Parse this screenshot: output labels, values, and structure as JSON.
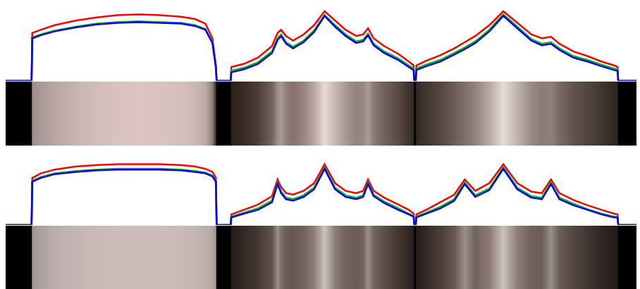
{
  "chart_data": [
    {
      "type": "line",
      "grid": false,
      "tick_labels": false,
      "xlim": [
        0,
        900
      ],
      "xticks": [
        115,
        180,
        245,
        310,
        375,
        440,
        505,
        570,
        635,
        700,
        765,
        830,
        895
      ],
      "ylim": [
        0,
        1
      ],
      "yticks": [
        0.4,
        0.8
      ],
      "x": [
        0,
        37,
        38,
        50,
        70,
        100,
        130,
        160,
        190,
        220,
        250,
        270,
        285,
        295,
        300,
        301,
        321,
        322,
        340,
        360,
        380,
        388,
        393,
        400,
        410,
        425,
        440,
        455,
        470,
        485,
        500,
        510,
        517,
        525,
        540,
        560,
        575,
        582,
        583,
        585,
        586,
        600,
        620,
        640,
        655,
        670,
        690,
        710,
        730,
        750,
        765,
        778,
        790,
        810,
        830,
        850,
        868,
        873,
        874,
        900
      ],
      "series": [
        {
          "color": "#ff0000",
          "values": [
            0,
            0,
            0.62,
            0.66,
            0.72,
            0.78,
            0.82,
            0.85,
            0.86,
            0.85,
            0.83,
            0.8,
            0.74,
            0.55,
            0.2,
            0,
            0,
            0.18,
            0.22,
            0.3,
            0.45,
            0.62,
            0.66,
            0.58,
            0.52,
            0.6,
            0.72,
            0.9,
            0.78,
            0.66,
            0.58,
            0.6,
            0.68,
            0.55,
            0.45,
            0.35,
            0.25,
            0.2,
            0,
            0,
            0.2,
            0.26,
            0.33,
            0.42,
            0.5,
            0.58,
            0.72,
            0.9,
            0.75,
            0.6,
            0.55,
            0.57,
            0.48,
            0.38,
            0.32,
            0.25,
            0.2,
            0.18,
            0,
            0
          ]
        },
        {
          "color": "#00c000",
          "values": [
            0,
            0,
            0.56,
            0.6,
            0.65,
            0.7,
            0.74,
            0.76,
            0.77,
            0.76,
            0.75,
            0.72,
            0.67,
            0.5,
            0.18,
            0,
            0,
            0.13,
            0.17,
            0.24,
            0.38,
            0.55,
            0.6,
            0.5,
            0.44,
            0.52,
            0.65,
            0.85,
            0.72,
            0.6,
            0.51,
            0.53,
            0.61,
            0.48,
            0.38,
            0.29,
            0.2,
            0.16,
            0,
            0,
            0.16,
            0.21,
            0.27,
            0.36,
            0.43,
            0.51,
            0.66,
            0.86,
            0.7,
            0.54,
            0.48,
            0.5,
            0.42,
            0.32,
            0.27,
            0.21,
            0.16,
            0.15,
            0,
            0
          ]
        },
        {
          "color": "#0000ff",
          "values": [
            0,
            0,
            0.55,
            0.59,
            0.64,
            0.69,
            0.73,
            0.75,
            0.76,
            0.75,
            0.74,
            0.71,
            0.66,
            0.49,
            0.17,
            0,
            0,
            0.11,
            0.15,
            0.22,
            0.36,
            0.53,
            0.58,
            0.48,
            0.42,
            0.5,
            0.63,
            0.84,
            0.7,
            0.58,
            0.49,
            0.51,
            0.59,
            0.46,
            0.36,
            0.27,
            0.18,
            0.14,
            0,
            0,
            0.14,
            0.19,
            0.25,
            0.34,
            0.41,
            0.49,
            0.64,
            0.84,
            0.68,
            0.52,
            0.46,
            0.48,
            0.4,
            0.3,
            0.25,
            0.19,
            0.14,
            0.13,
            0,
            0
          ]
        }
      ]
    },
    {
      "type": "line",
      "grid": false,
      "tick_labels": false,
      "xlim": [
        0,
        900
      ],
      "xticks": [
        115,
        180,
        245,
        310,
        375,
        440,
        505,
        570,
        635,
        700,
        765,
        830,
        895
      ],
      "ylim": [
        0,
        1
      ],
      "yticks": [
        0.4,
        0.8
      ],
      "x": [
        0,
        37,
        38,
        50,
        70,
        100,
        130,
        160,
        190,
        220,
        250,
        270,
        285,
        295,
        300,
        301,
        321,
        322,
        340,
        360,
        380,
        388,
        393,
        400,
        410,
        425,
        440,
        455,
        470,
        485,
        500,
        510,
        517,
        525,
        540,
        560,
        575,
        582,
        583,
        585,
        586,
        600,
        620,
        640,
        655,
        670,
        690,
        710,
        730,
        750,
        765,
        778,
        790,
        810,
        830,
        850,
        868,
        873,
        874,
        900
      ],
      "series": [
        {
          "color": "#ff0000",
          "values": [
            0,
            0,
            0.62,
            0.68,
            0.73,
            0.77,
            0.79,
            0.8,
            0.8,
            0.8,
            0.79,
            0.77,
            0.74,
            0.7,
            0.62,
            0,
            0,
            0.14,
            0.2,
            0.27,
            0.38,
            0.6,
            0.5,
            0.42,
            0.4,
            0.45,
            0.55,
            0.8,
            0.55,
            0.45,
            0.42,
            0.45,
            0.6,
            0.45,
            0.36,
            0.27,
            0.2,
            0.15,
            0,
            0,
            0.14,
            0.2,
            0.3,
            0.4,
            0.6,
            0.45,
            0.55,
            0.8,
            0.55,
            0.44,
            0.42,
            0.6,
            0.42,
            0.33,
            0.26,
            0.2,
            0.15,
            0.14,
            0,
            0
          ]
        },
        {
          "color": "#00c000",
          "values": [
            0,
            0,
            0.58,
            0.63,
            0.68,
            0.71,
            0.73,
            0.74,
            0.74,
            0.74,
            0.73,
            0.71,
            0.69,
            0.65,
            0.58,
            0,
            0,
            0.11,
            0.16,
            0.22,
            0.32,
            0.56,
            0.44,
            0.36,
            0.34,
            0.39,
            0.49,
            0.76,
            0.49,
            0.39,
            0.36,
            0.39,
            0.56,
            0.4,
            0.31,
            0.22,
            0.15,
            0.12,
            0,
            0,
            0.11,
            0.16,
            0.24,
            0.34,
            0.56,
            0.39,
            0.48,
            0.76,
            0.49,
            0.38,
            0.36,
            0.56,
            0.36,
            0.28,
            0.21,
            0.15,
            0.11,
            0.11,
            0,
            0
          ]
        },
        {
          "color": "#0000ff",
          "values": [
            0,
            0,
            0.57,
            0.62,
            0.67,
            0.7,
            0.72,
            0.73,
            0.73,
            0.73,
            0.72,
            0.7,
            0.68,
            0.64,
            0.57,
            0,
            0,
            0.1,
            0.15,
            0.2,
            0.3,
            0.54,
            0.42,
            0.34,
            0.32,
            0.37,
            0.47,
            0.74,
            0.47,
            0.37,
            0.34,
            0.37,
            0.54,
            0.38,
            0.29,
            0.2,
            0.14,
            0.11,
            0,
            0,
            0.1,
            0.15,
            0.22,
            0.32,
            0.54,
            0.37,
            0.46,
            0.74,
            0.47,
            0.36,
            0.34,
            0.54,
            0.34,
            0.26,
            0.2,
            0.14,
            0.1,
            0.1,
            0,
            0
          ]
        }
      ]
    }
  ]
}
